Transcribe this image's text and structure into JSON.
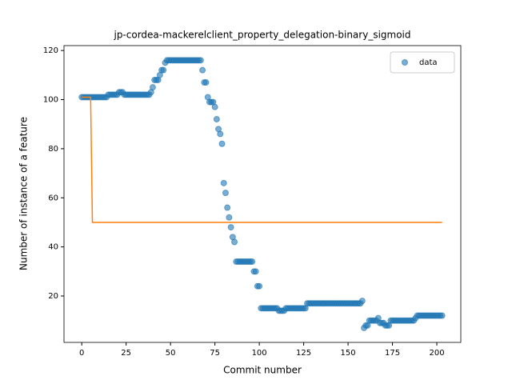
{
  "chart_data": {
    "type": "scatter",
    "title": "jp-cordea-mackerelclient_property_delegation-binary_sigmoid",
    "xlabel": "Commit number",
    "ylabel": "Number of instance of a feature",
    "xlim": [
      -10,
      213.5
    ],
    "ylim": [
      1.1,
      122
    ],
    "xticks": [
      0,
      25,
      50,
      75,
      100,
      125,
      150,
      175,
      200
    ],
    "yticks": [
      20,
      40,
      60,
      80,
      100,
      120
    ],
    "legend": "upper right",
    "series": [
      {
        "name": "data",
        "color": "#1f77b4",
        "style": "marker",
        "x": [
          0,
          1,
          2,
          3,
          4,
          5,
          6,
          7,
          8,
          9,
          10,
          11,
          12,
          13,
          14,
          15,
          16,
          17,
          18,
          19,
          20,
          21,
          22,
          23,
          24,
          25,
          26,
          27,
          28,
          29,
          30,
          31,
          32,
          33,
          34,
          35,
          36,
          37,
          38,
          39,
          40,
          41,
          42,
          43,
          44,
          45,
          46,
          47,
          48,
          49,
          50,
          51,
          52,
          53,
          54,
          55,
          56,
          57,
          58,
          59,
          60,
          61,
          62,
          63,
          64,
          65,
          66,
          67,
          68,
          69,
          70,
          71,
          72,
          73,
          74,
          75,
          76,
          77,
          78,
          79,
          80,
          81,
          82,
          83,
          84,
          85,
          86,
          87,
          88,
          89,
          90,
          91,
          92,
          93,
          94,
          95,
          96,
          97,
          98,
          99,
          100,
          101,
          102,
          103,
          104,
          105,
          106,
          107,
          108,
          109,
          110,
          111,
          112,
          113,
          114,
          115,
          116,
          117,
          118,
          119,
          120,
          121,
          122,
          123,
          124,
          125,
          126,
          127,
          128,
          129,
          130,
          131,
          132,
          133,
          134,
          135,
          136,
          137,
          138,
          139,
          140,
          141,
          142,
          143,
          144,
          145,
          146,
          147,
          148,
          149,
          150,
          151,
          152,
          153,
          154,
          155,
          156,
          157,
          158,
          159,
          160,
          161,
          162,
          163,
          164,
          165,
          166,
          167,
          168,
          169,
          170,
          171,
          172,
          173,
          174,
          175,
          176,
          177,
          178,
          179,
          180,
          181,
          182,
          183,
          184,
          185,
          186,
          187,
          188,
          189,
          190,
          191,
          192,
          193,
          194,
          195,
          196,
          197,
          198,
          199,
          200,
          201,
          202,
          203
        ],
        "values": [
          101,
          101,
          101,
          101,
          101,
          101,
          101,
          101,
          101,
          101,
          101,
          101,
          101,
          101,
          101,
          102,
          102,
          102,
          102,
          102,
          102,
          103,
          103,
          103,
          102,
          102,
          102,
          102,
          102,
          102,
          102,
          102,
          102,
          102,
          102,
          102,
          102,
          102,
          102,
          103,
          105,
          108,
          108,
          108,
          110,
          112,
          112,
          115,
          116,
          116,
          116,
          116,
          116,
          116,
          116,
          116,
          116,
          116,
          116,
          116,
          116,
          116,
          116,
          116,
          116,
          116,
          116,
          116,
          112,
          107,
          107,
          101,
          99,
          99,
          99,
          97,
          92,
          88,
          86,
          82,
          66,
          62,
          56,
          52,
          48,
          44,
          42,
          34,
          34,
          34,
          34,
          34,
          34,
          34,
          34,
          34,
          34,
          30,
          30,
          24,
          24,
          15,
          15,
          15,
          15,
          15,
          15,
          15,
          15,
          15,
          15,
          14,
          14,
          14,
          14,
          15,
          15,
          15,
          15,
          15,
          15,
          15,
          15,
          15,
          15,
          15,
          15,
          17,
          17,
          17,
          17,
          17,
          17,
          17,
          17,
          17,
          17,
          17,
          17,
          17,
          17,
          17,
          17,
          17,
          17,
          17,
          17,
          17,
          17,
          17,
          17,
          17,
          17,
          17,
          17,
          17,
          17,
          17,
          18,
          7,
          8,
          8,
          10,
          10,
          10,
          10,
          10,
          11,
          9,
          9,
          9,
          8,
          8,
          8,
          10,
          10,
          10,
          10,
          10,
          10,
          10,
          10,
          10,
          10,
          10,
          10,
          10,
          10,
          11,
          12,
          12,
          12,
          12,
          12,
          12,
          12,
          12,
          12,
          12,
          12,
          12,
          12,
          12,
          12
        ]
      },
      {
        "color": "#ff7f0e",
        "style": "line",
        "x": [
          0,
          5,
          6,
          203
        ],
        "values": [
          101,
          101,
          50,
          50
        ]
      }
    ]
  }
}
